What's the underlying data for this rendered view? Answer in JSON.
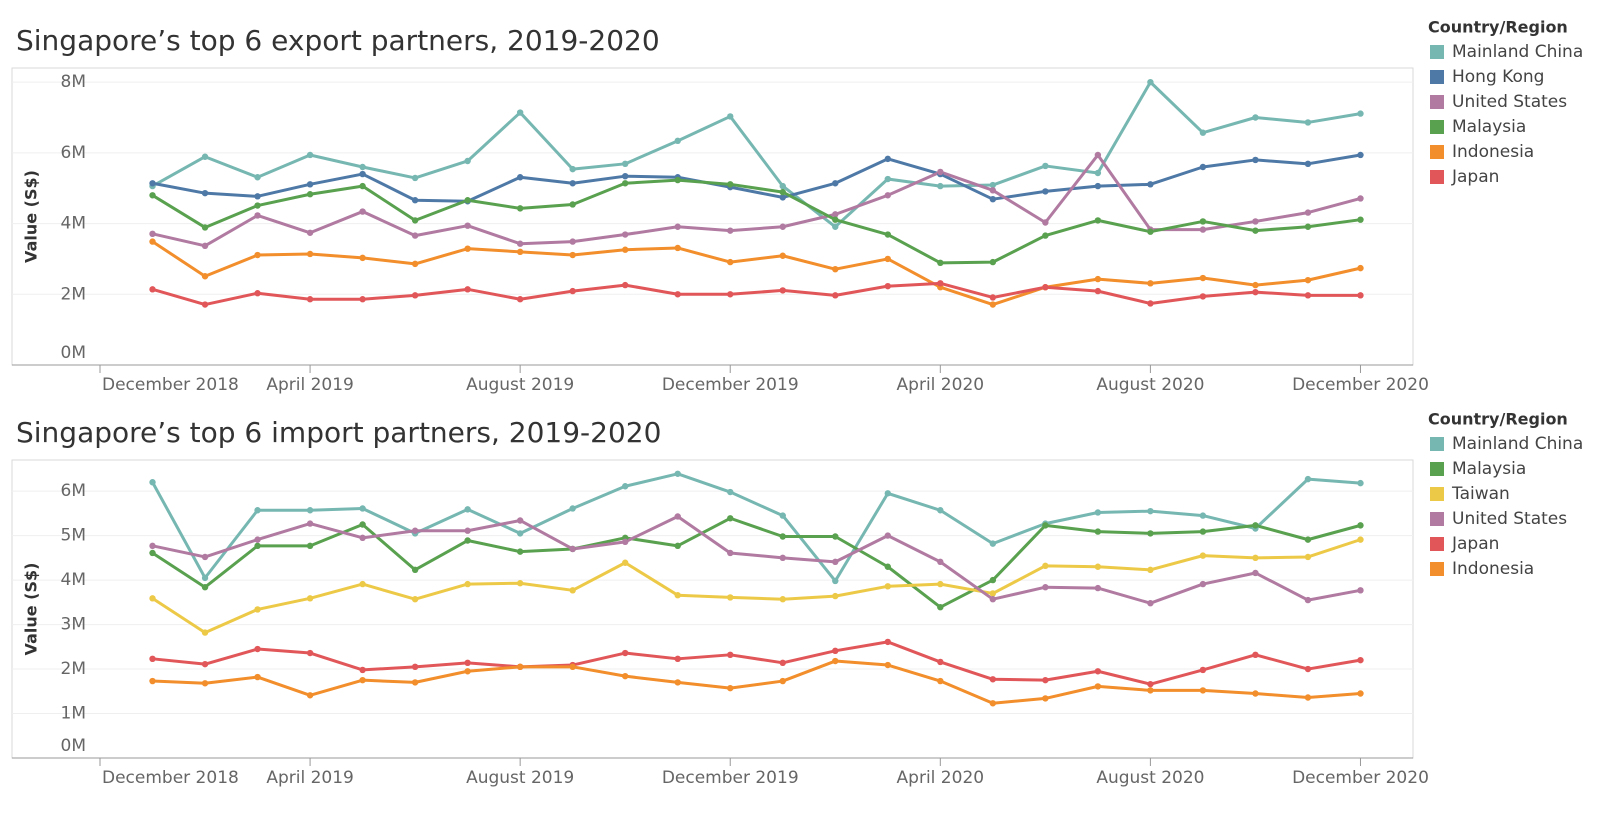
{
  "chart_data": [
    {
      "type": "line",
      "title": "Singapore’s top 6 export partners, 2019-2020",
      "y_label": "Value (S$)",
      "legend_title": "Country/Region",
      "grid": true,
      "x": [
        "2019-01",
        "2019-02",
        "2019-03",
        "2019-04",
        "2019-05",
        "2019-06",
        "2019-07",
        "2019-08",
        "2019-09",
        "2019-10",
        "2019-11",
        "2019-12",
        "2020-01",
        "2020-02",
        "2020-03",
        "2020-04",
        "2020-05",
        "2020-06",
        "2020-07",
        "2020-08",
        "2020-09",
        "2020-10",
        "2020-11",
        "2020-12"
      ],
      "xlim": [
        "2018-12",
        "2021-01"
      ],
      "xticks": [
        {
          "value": "2018-12",
          "label": "December 2018"
        },
        {
          "value": "2019-04",
          "label": "April 2019"
        },
        {
          "value": "2019-08",
          "label": "August 2019"
        },
        {
          "value": "2019-12",
          "label": "December 2019"
        },
        {
          "value": "2020-04",
          "label": "April 2020"
        },
        {
          "value": "2020-08",
          "label": "August 2020"
        },
        {
          "value": "2020-12",
          "label": "December 2020"
        }
      ],
      "ylim": [
        0,
        8.4
      ],
      "yticks": [
        {
          "value": 0,
          "label": "0M"
        },
        {
          "value": 2,
          "label": "2M"
        },
        {
          "value": 4,
          "label": "4M"
        },
        {
          "value": 6,
          "label": "6M"
        },
        {
          "value": 8,
          "label": "8M"
        }
      ],
      "series": [
        {
          "name": "Mainland China",
          "color": "#76b7b2",
          "values": [
            5.06,
            5.89,
            5.31,
            5.94,
            5.6,
            5.29,
            5.77,
            7.14,
            5.54,
            5.69,
            6.34,
            7.03,
            5.06,
            3.91,
            5.26,
            5.06,
            5.09,
            5.63,
            5.43,
            8.0,
            6.57,
            7.0,
            6.86,
            7.11
          ]
        },
        {
          "name": "Hong Kong",
          "color": "#4e79a7",
          "values": [
            5.14,
            4.86,
            4.77,
            5.11,
            5.4,
            4.66,
            4.63,
            5.31,
            5.14,
            5.34,
            5.31,
            5.03,
            4.74,
            5.14,
            5.83,
            5.4,
            4.69,
            4.91,
            5.06,
            5.11,
            5.6,
            5.8,
            5.69,
            5.94
          ]
        },
        {
          "name": "United States",
          "color": "#b07aa1",
          "values": [
            3.71,
            3.37,
            4.23,
            3.74,
            4.34,
            3.66,
            3.94,
            3.43,
            3.49,
            3.69,
            3.91,
            3.8,
            3.91,
            4.26,
            4.8,
            5.46,
            4.94,
            4.03,
            5.94,
            3.83,
            3.83,
            4.06,
            4.31,
            4.71
          ]
        },
        {
          "name": "Malaysia",
          "color": "#59a14f",
          "values": [
            4.8,
            3.89,
            4.51,
            4.83,
            5.06,
            4.09,
            4.66,
            4.43,
            4.54,
            5.14,
            5.23,
            5.11,
            4.89,
            4.11,
            3.69,
            2.89,
            2.91,
            3.66,
            4.09,
            3.77,
            4.06,
            3.8,
            3.91,
            4.11
          ]
        },
        {
          "name": "Indonesia",
          "color": "#f28e2b",
          "values": [
            3.49,
            2.51,
            3.11,
            3.14,
            3.03,
            2.86,
            3.29,
            3.2,
            3.11,
            3.26,
            3.31,
            2.91,
            3.09,
            2.71,
            3.0,
            2.2,
            1.71,
            2.2,
            2.43,
            2.31,
            2.46,
            2.26,
            2.4,
            2.74
          ]
        },
        {
          "name": "Japan",
          "color": "#e15759",
          "values": [
            2.14,
            1.71,
            2.03,
            1.86,
            1.86,
            1.97,
            2.14,
            1.86,
            2.09,
            2.26,
            2.0,
            2.0,
            2.11,
            1.97,
            2.23,
            2.31,
            1.91,
            2.2,
            2.09,
            1.74,
            1.94,
            2.06,
            1.97,
            1.97
          ]
        }
      ]
    },
    {
      "type": "line",
      "title": "Singapore’s top 6 import partners, 2019-2020",
      "y_label": "Value (S$)",
      "legend_title": "Country/Region",
      "grid": true,
      "x": [
        "2019-01",
        "2019-02",
        "2019-03",
        "2019-04",
        "2019-05",
        "2019-06",
        "2019-07",
        "2019-08",
        "2019-09",
        "2019-10",
        "2019-11",
        "2019-12",
        "2020-01",
        "2020-02",
        "2020-03",
        "2020-04",
        "2020-05",
        "2020-06",
        "2020-07",
        "2020-08",
        "2020-09",
        "2020-10",
        "2020-11",
        "2020-12"
      ],
      "xlim": [
        "2018-12",
        "2021-01"
      ],
      "xticks": [
        {
          "value": "2018-12",
          "label": "December 2018"
        },
        {
          "value": "2019-04",
          "label": "April 2019"
        },
        {
          "value": "2019-08",
          "label": "August 2019"
        },
        {
          "value": "2019-12",
          "label": "December 2019"
        },
        {
          "value": "2020-04",
          "label": "April 2020"
        },
        {
          "value": "2020-08",
          "label": "August 2020"
        },
        {
          "value": "2020-12",
          "label": "December 2020"
        }
      ],
      "ylim": [
        0,
        6.7
      ],
      "yticks": [
        {
          "value": 0,
          "label": "0M"
        },
        {
          "value": 1,
          "label": "1M"
        },
        {
          "value": 2,
          "label": "2M"
        },
        {
          "value": 3,
          "label": "3M"
        },
        {
          "value": 4,
          "label": "4M"
        },
        {
          "value": 5,
          "label": "5M"
        },
        {
          "value": 6,
          "label": "6M"
        }
      ],
      "series": [
        {
          "name": "Mainland China",
          "color": "#76b7b2",
          "values": [
            6.2,
            4.05,
            5.57,
            5.57,
            5.61,
            5.05,
            5.59,
            5.05,
            5.61,
            6.11,
            6.39,
            5.98,
            5.45,
            3.98,
            5.95,
            5.57,
            4.82,
            5.27,
            5.52,
            5.55,
            5.45,
            5.16,
            6.27,
            6.18
          ]
        },
        {
          "name": "Malaysia",
          "color": "#59a14f",
          "values": [
            4.61,
            3.84,
            4.77,
            4.77,
            5.25,
            4.23,
            4.89,
            4.64,
            4.7,
            4.95,
            4.77,
            5.39,
            4.98,
            4.98,
            4.3,
            3.39,
            4.0,
            5.23,
            5.09,
            5.05,
            5.09,
            5.23,
            4.91,
            5.23
          ]
        },
        {
          "name": "Taiwan",
          "color": "#edc948",
          "values": [
            3.59,
            2.82,
            3.34,
            3.59,
            3.91,
            3.57,
            3.91,
            3.93,
            3.77,
            4.39,
            3.66,
            3.61,
            3.57,
            3.64,
            3.86,
            3.91,
            3.7,
            4.32,
            4.3,
            4.23,
            4.55,
            4.5,
            4.52,
            4.91
          ]
        },
        {
          "name": "United States",
          "color": "#b07aa1",
          "values": [
            4.77,
            4.52,
            4.91,
            5.27,
            4.95,
            5.11,
            5.11,
            5.34,
            4.7,
            4.86,
            5.43,
            4.61,
            4.5,
            4.41,
            5.0,
            4.41,
            3.57,
            3.84,
            3.82,
            3.48,
            3.91,
            4.16,
            3.55,
            3.77
          ]
        },
        {
          "name": "Japan",
          "color": "#e15759",
          "values": [
            2.23,
            2.11,
            2.45,
            2.36,
            1.98,
            2.05,
            2.14,
            2.05,
            2.09,
            2.36,
            2.23,
            2.32,
            2.14,
            2.41,
            2.61,
            2.16,
            1.77,
            1.75,
            1.95,
            1.66,
            1.98,
            2.32,
            2.0,
            2.2
          ]
        },
        {
          "name": "Indonesia",
          "color": "#f28e2b",
          "values": [
            1.73,
            1.68,
            1.82,
            1.41,
            1.75,
            1.7,
            1.95,
            2.05,
            2.05,
            1.84,
            1.7,
            1.57,
            1.73,
            2.18,
            2.09,
            1.73,
            1.23,
            1.34,
            1.61,
            1.52,
            1.52,
            1.45,
            1.36,
            1.45
          ]
        }
      ]
    }
  ]
}
